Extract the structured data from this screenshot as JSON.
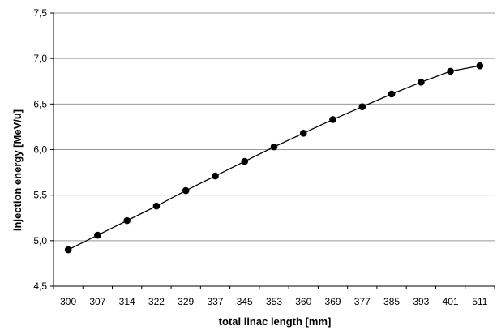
{
  "chart_data": {
    "type": "line",
    "title": "",
    "xlabel": "total linac length [mm]",
    "ylabel": "injection energy [MeV/u]",
    "categories": [
      "300",
      "307",
      "314",
      "322",
      "329",
      "337",
      "345",
      "353",
      "360",
      "369",
      "377",
      "385",
      "393",
      "401",
      "511"
    ],
    "series": [
      {
        "values": [
          4.9,
          5.06,
          5.22,
          5.38,
          5.55,
          5.71,
          5.87,
          6.03,
          6.18,
          6.33,
          6.47,
          6.61,
          6.74,
          6.86,
          6.92
        ]
      }
    ],
    "ylim": [
      4.5,
      7.5
    ],
    "yticks": [
      "4,5",
      "5,0",
      "5,5",
      "6,0",
      "6,5",
      "7,0",
      "7,5"
    ],
    "grid": true,
    "legend": "none",
    "colors": {
      "line": "#000000",
      "marker": "#000000",
      "grid": "#999999",
      "axis": "#000000"
    }
  }
}
